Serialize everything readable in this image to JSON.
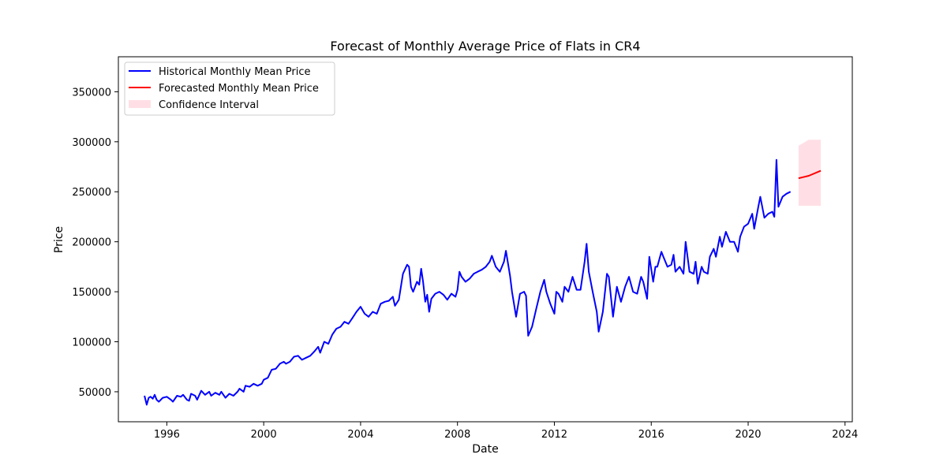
{
  "chart_data": {
    "type": "line",
    "title": "Forecast of Monthly Average Price of Flats in CR4",
    "xlabel": "Date",
    "ylabel": "Price",
    "xlim": [
      1994.0,
      2024.3
    ],
    "ylim": [
      20000,
      385000
    ],
    "x_ticks": [
      1996,
      2000,
      2004,
      2008,
      2012,
      2016,
      2020,
      2024
    ],
    "y_ticks": [
      50000,
      100000,
      150000,
      200000,
      250000,
      300000,
      350000
    ],
    "grid": false,
    "legend_position": "top-left",
    "legend": [
      {
        "label": "Historical Monthly Mean Price",
        "kind": "line",
        "color": "#0000ff"
      },
      {
        "label": "Forecasted Monthly Mean Price",
        "kind": "line",
        "color": "#ff0000"
      },
      {
        "label": "Confidence Interval",
        "kind": "patch",
        "color": "#ffc0cb"
      }
    ],
    "series": [
      {
        "name": "Historical Monthly Mean Price",
        "color": "#0000ff",
        "points": [
          [
            1995.08,
            46000
          ],
          [
            1995.17,
            37000
          ],
          [
            1995.25,
            44000
          ],
          [
            1995.33,
            45000
          ],
          [
            1995.42,
            43000
          ],
          [
            1995.5,
            47000
          ],
          [
            1995.58,
            42000
          ],
          [
            1995.67,
            40000
          ],
          [
            1995.83,
            44000
          ],
          [
            1996.0,
            45000
          ],
          [
            1996.17,
            42000
          ],
          [
            1996.25,
            40000
          ],
          [
            1996.42,
            46000
          ],
          [
            1996.58,
            45000
          ],
          [
            1996.67,
            47000
          ],
          [
            1996.83,
            42000
          ],
          [
            1996.92,
            41000
          ],
          [
            1997.0,
            48000
          ],
          [
            1997.17,
            46000
          ],
          [
            1997.25,
            42000
          ],
          [
            1997.42,
            51000
          ],
          [
            1997.58,
            47000
          ],
          [
            1997.75,
            50000
          ],
          [
            1997.83,
            46000
          ],
          [
            1998.0,
            49000
          ],
          [
            1998.17,
            47000
          ],
          [
            1998.25,
            50000
          ],
          [
            1998.42,
            44000
          ],
          [
            1998.58,
            48000
          ],
          [
            1998.75,
            46000
          ],
          [
            1998.92,
            50000
          ],
          [
            1999.0,
            53000
          ],
          [
            1999.17,
            50000
          ],
          [
            1999.25,
            56000
          ],
          [
            1999.42,
            55000
          ],
          [
            1999.58,
            58000
          ],
          [
            1999.75,
            56000
          ],
          [
            1999.92,
            58000
          ],
          [
            2000.0,
            62000
          ],
          [
            2000.17,
            64000
          ],
          [
            2000.33,
            72000
          ],
          [
            2000.5,
            73000
          ],
          [
            2000.67,
            78000
          ],
          [
            2000.83,
            80000
          ],
          [
            2000.92,
            78000
          ],
          [
            2001.08,
            80000
          ],
          [
            2001.25,
            85000
          ],
          [
            2001.42,
            86000
          ],
          [
            2001.58,
            82000
          ],
          [
            2001.75,
            84000
          ],
          [
            2001.92,
            86000
          ],
          [
            2002.08,
            90000
          ],
          [
            2002.25,
            95000
          ],
          [
            2002.33,
            89000
          ],
          [
            2002.5,
            100000
          ],
          [
            2002.67,
            98000
          ],
          [
            2002.83,
            107000
          ],
          [
            2003.0,
            113000
          ],
          [
            2003.17,
            115000
          ],
          [
            2003.33,
            120000
          ],
          [
            2003.5,
            118000
          ],
          [
            2003.67,
            124000
          ],
          [
            2003.83,
            130000
          ],
          [
            2004.0,
            135000
          ],
          [
            2004.17,
            128000
          ],
          [
            2004.33,
            125000
          ],
          [
            2004.5,
            130000
          ],
          [
            2004.67,
            128000
          ],
          [
            2004.83,
            138000
          ],
          [
            2005.0,
            140000
          ],
          [
            2005.17,
            141000
          ],
          [
            2005.33,
            145000
          ],
          [
            2005.42,
            136000
          ],
          [
            2005.58,
            142000
          ],
          [
            2005.75,
            168000
          ],
          [
            2005.92,
            177000
          ],
          [
            2006.0,
            175000
          ],
          [
            2006.08,
            155000
          ],
          [
            2006.17,
            150000
          ],
          [
            2006.33,
            160000
          ],
          [
            2006.42,
            157000
          ],
          [
            2006.5,
            173000
          ],
          [
            2006.58,
            160000
          ],
          [
            2006.67,
            140000
          ],
          [
            2006.75,
            147000
          ],
          [
            2006.83,
            130000
          ],
          [
            2006.92,
            143000
          ],
          [
            2007.08,
            148000
          ],
          [
            2007.25,
            150000
          ],
          [
            2007.42,
            147000
          ],
          [
            2007.58,
            142000
          ],
          [
            2007.75,
            148000
          ],
          [
            2007.92,
            145000
          ],
          [
            2008.0,
            152000
          ],
          [
            2008.08,
            170000
          ],
          [
            2008.17,
            165000
          ],
          [
            2008.33,
            160000
          ],
          [
            2008.5,
            163000
          ],
          [
            2008.67,
            168000
          ],
          [
            2008.83,
            170000
          ],
          [
            2009.0,
            172000
          ],
          [
            2009.17,
            175000
          ],
          [
            2009.33,
            180000
          ],
          [
            2009.42,
            186000
          ],
          [
            2009.58,
            175000
          ],
          [
            2009.75,
            170000
          ],
          [
            2009.92,
            180000
          ],
          [
            2010.0,
            191000
          ],
          [
            2010.17,
            166000
          ],
          [
            2010.25,
            150000
          ],
          [
            2010.42,
            125000
          ],
          [
            2010.58,
            148000
          ],
          [
            2010.75,
            150000
          ],
          [
            2010.83,
            146000
          ],
          [
            2010.92,
            106000
          ],
          [
            2011.08,
            115000
          ],
          [
            2011.25,
            133000
          ],
          [
            2011.42,
            150000
          ],
          [
            2011.58,
            162000
          ],
          [
            2011.67,
            150000
          ],
          [
            2011.83,
            138000
          ],
          [
            2012.0,
            128000
          ],
          [
            2012.08,
            150000
          ],
          [
            2012.17,
            148000
          ],
          [
            2012.33,
            140000
          ],
          [
            2012.42,
            155000
          ],
          [
            2012.58,
            150000
          ],
          [
            2012.75,
            165000
          ],
          [
            2012.92,
            152000
          ],
          [
            2013.08,
            152000
          ],
          [
            2013.25,
            180000
          ],
          [
            2013.33,
            198000
          ],
          [
            2013.42,
            170000
          ],
          [
            2013.58,
            150000
          ],
          [
            2013.75,
            130000
          ],
          [
            2013.83,
            110000
          ],
          [
            2014.0,
            130000
          ],
          [
            2014.17,
            168000
          ],
          [
            2014.25,
            165000
          ],
          [
            2014.42,
            125000
          ],
          [
            2014.58,
            155000
          ],
          [
            2014.75,
            140000
          ],
          [
            2014.92,
            155000
          ],
          [
            2015.08,
            165000
          ],
          [
            2015.25,
            150000
          ],
          [
            2015.42,
            148000
          ],
          [
            2015.58,
            165000
          ],
          [
            2015.67,
            160000
          ],
          [
            2015.83,
            143000
          ],
          [
            2015.92,
            185000
          ],
          [
            2016.08,
            160000
          ],
          [
            2016.17,
            175000
          ],
          [
            2016.25,
            175000
          ],
          [
            2016.42,
            190000
          ],
          [
            2016.5,
            185000
          ],
          [
            2016.67,
            175000
          ],
          [
            2016.83,
            177000
          ],
          [
            2016.92,
            187000
          ],
          [
            2017.0,
            170000
          ],
          [
            2017.17,
            175000
          ],
          [
            2017.33,
            168000
          ],
          [
            2017.42,
            200000
          ],
          [
            2017.58,
            170000
          ],
          [
            2017.75,
            168000
          ],
          [
            2017.83,
            180000
          ],
          [
            2017.92,
            158000
          ],
          [
            2018.08,
            175000
          ],
          [
            2018.17,
            170000
          ],
          [
            2018.33,
            168000
          ],
          [
            2018.42,
            185000
          ],
          [
            2018.58,
            193000
          ],
          [
            2018.67,
            185000
          ],
          [
            2018.83,
            205000
          ],
          [
            2018.92,
            195000
          ],
          [
            2019.08,
            210000
          ],
          [
            2019.25,
            200000
          ],
          [
            2019.42,
            200000
          ],
          [
            2019.58,
            190000
          ],
          [
            2019.67,
            205000
          ],
          [
            2019.83,
            215000
          ],
          [
            2020.0,
            218000
          ],
          [
            2020.17,
            228000
          ],
          [
            2020.25,
            213000
          ],
          [
            2020.42,
            235000
          ],
          [
            2020.5,
            245000
          ],
          [
            2020.67,
            224000
          ],
          [
            2020.83,
            228000
          ],
          [
            2021.0,
            230000
          ],
          [
            2021.08,
            225000
          ],
          [
            2021.17,
            282000
          ],
          [
            2021.25,
            235000
          ],
          [
            2021.42,
            245000
          ],
          [
            2021.58,
            248000
          ],
          [
            2021.75,
            250000
          ]
        ]
      },
      {
        "name": "Forecasted Monthly Mean Price",
        "color": "#ff0000",
        "points": [
          [
            2022.08,
            263500
          ],
          [
            2022.5,
            266000
          ],
          [
            2023.0,
            271000
          ]
        ]
      }
    ],
    "confidence_interval": {
      "name": "Confidence Interval",
      "color": "#ffc0cb",
      "x": [
        2022.08,
        2022.5,
        2023.0
      ],
      "lower": [
        236000,
        236000,
        236000
      ],
      "upper": [
        296000,
        302000,
        302000
      ]
    }
  }
}
